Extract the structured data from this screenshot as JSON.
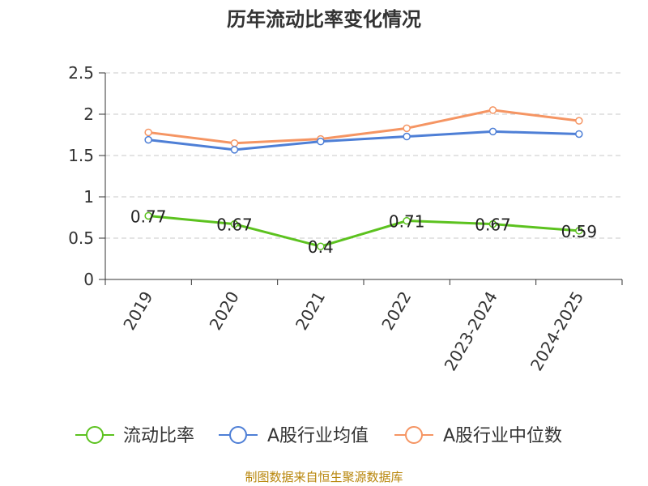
{
  "chart_data": {
    "type": "line",
    "title": "历年流动比率变化情况",
    "categories": [
      "2019",
      "2020",
      "2021",
      "2022",
      "2023-2024",
      "2024-2025"
    ],
    "ylim": [
      0,
      2.5
    ],
    "yticks": [
      "0",
      "0.5",
      "1",
      "1.5",
      "2",
      "2.5"
    ],
    "grid": true,
    "legend_position": "bottom",
    "series": [
      {
        "name": "流动比率",
        "color": "#5cc21f",
        "values": [
          0.77,
          0.67,
          0.4,
          0.71,
          0.67,
          0.59
        ],
        "labels": [
          "0.77",
          "0.67",
          "0.4",
          "0.71",
          "0.67",
          "0.59"
        ]
      },
      {
        "name": "A股行业均值",
        "color": "#4e7fd6",
        "values": [
          1.69,
          1.57,
          1.67,
          1.73,
          1.79,
          1.76
        ]
      },
      {
        "name": "A股行业中位数",
        "color": "#f59563",
        "values": [
          1.78,
          1.65,
          1.7,
          1.83,
          2.05,
          1.92
        ]
      }
    ],
    "source": "制图数据来自恒生聚源数据库"
  }
}
